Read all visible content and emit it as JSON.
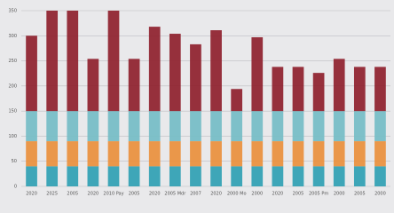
{
  "chart_data": {
    "type": "stacked-bar",
    "categories": [
      "2020",
      "2025",
      "2005",
      "2020",
      "2010 Pay",
      "2005",
      "2020",
      "2005 Mdr",
      "2007",
      "2020",
      "2000 Mo",
      "2000",
      "2020",
      "2005",
      "2005 Pm",
      "2000",
      "2005",
      "2000"
    ],
    "series": [
      {
        "color": "#2f9fb3",
        "values": [
          40,
          40,
          40,
          40,
          40,
          40,
          40,
          40,
          40,
          40,
          40,
          40,
          40,
          40,
          40,
          40,
          40,
          40
        ]
      },
      {
        "color": "#e98f3c",
        "values": [
          50,
          50,
          50,
          50,
          50,
          50,
          50,
          50,
          50,
          50,
          50,
          50,
          50,
          50,
          50,
          50,
          50,
          50
        ]
      },
      {
        "color": "#74bcc6",
        "values": [
          60,
          60,
          60,
          60,
          60,
          60,
          60,
          60,
          60,
          60,
          60,
          60,
          60,
          60,
          60,
          60,
          60,
          60
        ]
      },
      {
        "color": "#8e1f2c",
        "values": [
          150,
          200,
          200,
          104,
          200,
          104,
          168,
          154,
          133,
          161,
          44,
          147,
          88,
          88,
          76,
          104,
          88,
          88
        ]
      }
    ],
    "ylim": [
      0,
      350
    ],
    "yticks": [
      0,
      50,
      100,
      150,
      200,
      250,
      300,
      350
    ],
    "grid": true
  }
}
